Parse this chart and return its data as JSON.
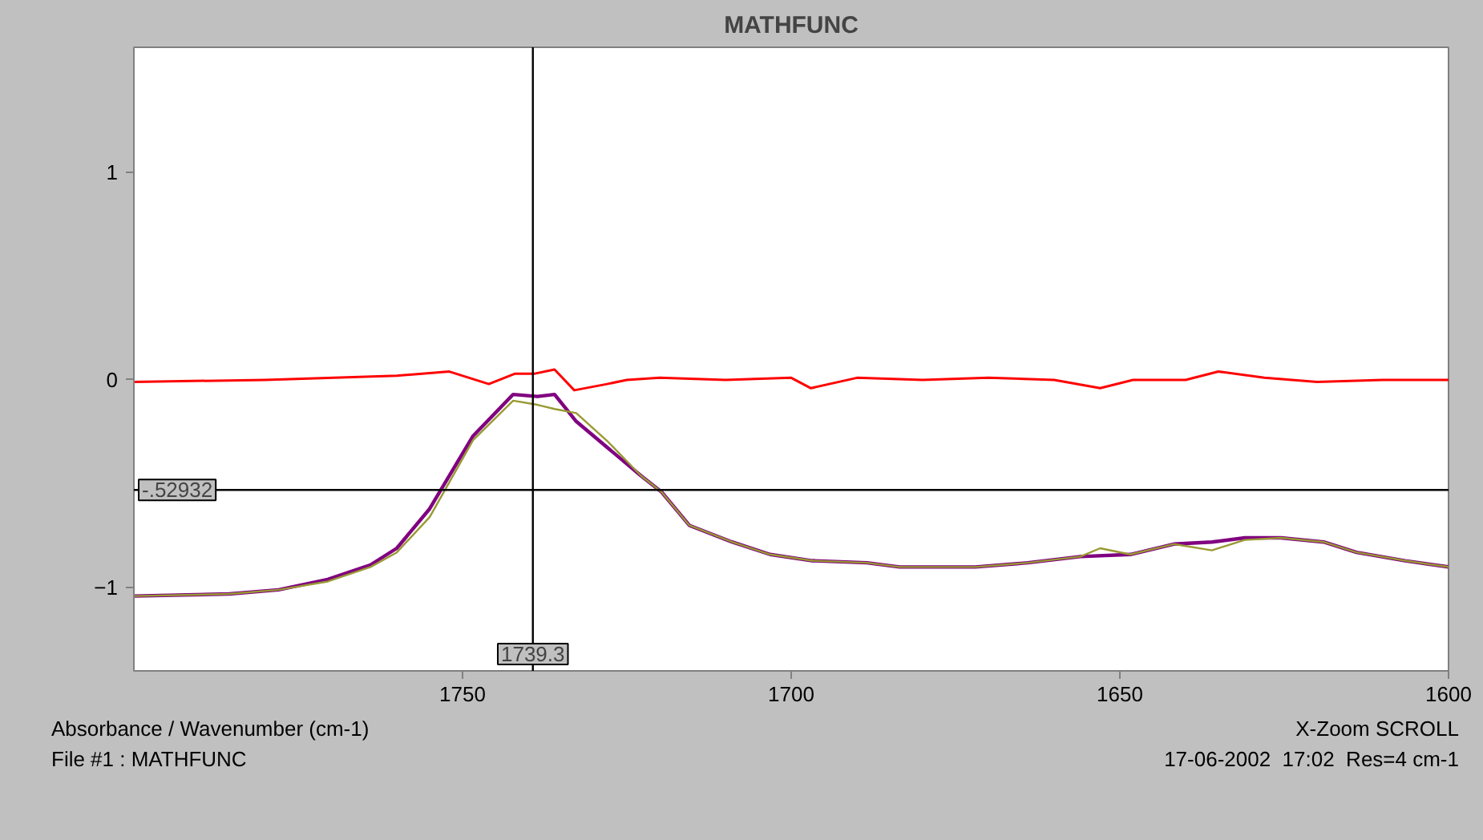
{
  "chart_data": {
    "type": "line",
    "title": "MATHFUNC",
    "xlabel": "Absorbance / Wavenumber (cm-1)",
    "annotations": [
      "X-Zoom SCROLL",
      "File #1 : MATHFUNC",
      "17-06-2002  17:02  Res=4 cm-1"
    ],
    "xlim": [
      1800,
      1600
    ],
    "xticks": [
      1750,
      1700,
      1650,
      1600
    ],
    "ylim": [
      -1.4,
      1.6
    ],
    "yticks": [
      -1,
      0,
      1
    ],
    "grid": false,
    "marker": "none",
    "line_style": "solid",
    "ref_lines": [
      {
        "axis": "x",
        "value": 1739.3,
        "label": "1739.3",
        "color": "#000000"
      },
      {
        "axis": "y",
        "value": -0.52932,
        "label": "-.52932",
        "color": "#000000"
      }
    ],
    "series": [
      {
        "color": "#ff0000",
        "x": [
          1800,
          1780,
          1760,
          1752,
          1746,
          1742,
          1739,
          1736,
          1733,
          1728,
          1725,
          1720,
          1710,
          1700,
          1697,
          1690,
          1680,
          1670,
          1660,
          1653,
          1648,
          1640,
          1635,
          1628,
          1620,
          1610,
          1600
        ],
        "values": [
          -0.01,
          0.0,
          0.02,
          0.04,
          -0.02,
          0.03,
          0.03,
          0.05,
          -0.05,
          -0.02,
          0.0,
          0.01,
          0.0,
          0.01,
          -0.04,
          0.01,
          0.0,
          0.01,
          0.0,
          -0.04,
          0.0,
          0.0,
          0.04,
          0.01,
          -0.01,
          0.0,
          0.0
        ]
      },
      {
        "color": "#800080",
        "x": [
          1800,
          1785.5,
          1778,
          1770.5,
          1764,
          1760,
          1755,
          1748.4,
          1742.3,
          1738.6,
          1736,
          1732.7,
          1727.8,
          1722.9,
          1719.7,
          1715.5,
          1709,
          1703.2,
          1696.8,
          1688.5,
          1683.5,
          1672,
          1664,
          1656,
          1648.4,
          1641.8,
          1636,
          1631,
          1625.5,
          1619,
          1614,
          1606.6,
          1600
        ],
        "values": [
          -1.04,
          -1.03,
          -1.01,
          -0.96,
          -0.89,
          -0.81,
          -0.62,
          -0.27,
          -0.07,
          -0.08,
          -0.07,
          -0.2,
          -0.33,
          -0.46,
          -0.54,
          -0.7,
          -0.78,
          -0.84,
          -0.87,
          -0.88,
          -0.9,
          -0.9,
          -0.88,
          -0.85,
          -0.84,
          -0.79,
          -0.78,
          -0.76,
          -0.76,
          -0.78,
          -0.83,
          -0.87,
          -0.9
        ]
      },
      {
        "color": "#999933",
        "x": [
          1800,
          1785.5,
          1778,
          1770.5,
          1764,
          1760,
          1755,
          1748.4,
          1742.3,
          1738.6,
          1736,
          1732.7,
          1727.8,
          1722.9,
          1719.7,
          1715.5,
          1709,
          1703.2,
          1696.8,
          1688.5,
          1683.5,
          1672,
          1664,
          1656,
          1653,
          1648.4,
          1641.8,
          1636,
          1631,
          1625.5,
          1619,
          1614,
          1606.6,
          1600
        ],
        "values": [
          -1.04,
          -1.03,
          -1.01,
          -0.97,
          -0.9,
          -0.83,
          -0.66,
          -0.29,
          -0.1,
          -0.12,
          -0.14,
          -0.16,
          -0.3,
          -0.46,
          -0.54,
          -0.7,
          -0.78,
          -0.84,
          -0.87,
          -0.88,
          -0.9,
          -0.9,
          -0.88,
          -0.85,
          -0.81,
          -0.84,
          -0.79,
          -0.82,
          -0.77,
          -0.76,
          -0.78,
          -0.83,
          -0.87,
          -0.9
        ]
      }
    ]
  }
}
